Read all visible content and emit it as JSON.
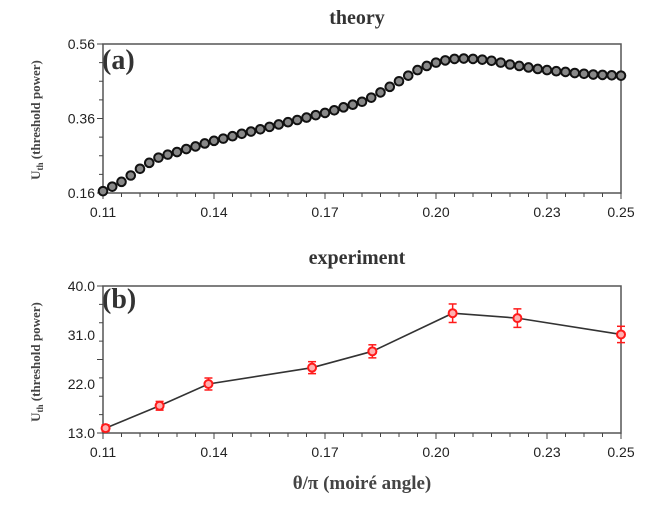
{
  "chart_data": [
    {
      "type": "scatter",
      "title": "theory",
      "panel_label": "(a)",
      "xlabel": "",
      "ylabel_main": "U",
      "ylabel_sub": "th",
      "ylabel_rest": " (threshold power)",
      "xlim": [
        0.11,
        0.25
      ],
      "ylim": [
        0.16,
        0.56
      ],
      "xticks": [
        "0.11",
        "0.14",
        "0.17",
        "0.20",
        "0.23",
        "0.25"
      ],
      "xtick_values": [
        0.11,
        0.14,
        0.17,
        0.2,
        0.23,
        0.25
      ],
      "yticks": [
        "0.16",
        "0.36",
        "0.56"
      ],
      "ytick_values": [
        0.16,
        0.36,
        0.56
      ],
      "color": "#111111",
      "x": [
        0.11,
        0.1125,
        0.115,
        0.1175,
        0.12,
        0.1225,
        0.125,
        0.1275,
        0.13,
        0.1325,
        0.135,
        0.1375,
        0.14,
        0.1425,
        0.145,
        0.1475,
        0.15,
        0.1525,
        0.155,
        0.1575,
        0.16,
        0.1625,
        0.165,
        0.1675,
        0.17,
        0.1725,
        0.175,
        0.1775,
        0.18,
        0.1825,
        0.185,
        0.1875,
        0.19,
        0.1925,
        0.195,
        0.1975,
        0.2,
        0.2025,
        0.205,
        0.2075,
        0.21,
        0.2125,
        0.215,
        0.2175,
        0.22,
        0.2225,
        0.225,
        0.2275,
        0.23,
        0.2325,
        0.235,
        0.2375,
        0.24,
        0.2425,
        0.245,
        0.2475,
        0.25
      ],
      "y": [
        0.165,
        0.177,
        0.19,
        0.207,
        0.225,
        0.241,
        0.255,
        0.263,
        0.27,
        0.278,
        0.285,
        0.293,
        0.3,
        0.306,
        0.3125,
        0.319,
        0.325,
        0.331,
        0.3375,
        0.344,
        0.35,
        0.356,
        0.3625,
        0.369,
        0.375,
        0.382,
        0.39,
        0.397,
        0.405,
        0.416,
        0.43,
        0.445,
        0.46,
        0.475,
        0.49,
        0.501,
        0.51,
        0.516,
        0.52,
        0.521,
        0.52,
        0.518,
        0.515,
        0.51,
        0.505,
        0.501,
        0.497,
        0.493,
        0.49,
        0.487,
        0.485,
        0.482,
        0.48,
        0.478,
        0.477,
        0.476,
        0.475
      ]
    },
    {
      "type": "line",
      "title": "experiment",
      "panel_label": "(b)",
      "xlabel": "θ/π (moiré angle)",
      "ylabel_main": "U",
      "ylabel_sub": "th",
      "ylabel_rest": " (threshold power)",
      "xlim": [
        0.11,
        0.25
      ],
      "ylim": [
        13.0,
        40.0
      ],
      "xticks": [
        "0.11",
        "0.14",
        "0.17",
        "0.20",
        "0.23",
        "0.25"
      ],
      "xtick_values": [
        0.11,
        0.14,
        0.17,
        0.2,
        0.23,
        0.25
      ],
      "yticks": [
        "13.0",
        "22.0",
        "31.0",
        "40.0"
      ],
      "ytick_values": [
        13.0,
        22.0,
        31.0,
        40.0
      ],
      "color": "#ff1a1a",
      "x": [
        0.1107,
        0.1253,
        0.1385,
        0.1665,
        0.1828,
        0.2045,
        0.222,
        0.25
      ],
      "y": [
        13.9,
        18.0,
        22.0,
        25.0,
        28.0,
        35.0,
        34.1,
        31.1
      ],
      "yerr": [
        0.6,
        0.8,
        1.1,
        1.1,
        1.2,
        1.7,
        1.7,
        1.5
      ]
    }
  ]
}
